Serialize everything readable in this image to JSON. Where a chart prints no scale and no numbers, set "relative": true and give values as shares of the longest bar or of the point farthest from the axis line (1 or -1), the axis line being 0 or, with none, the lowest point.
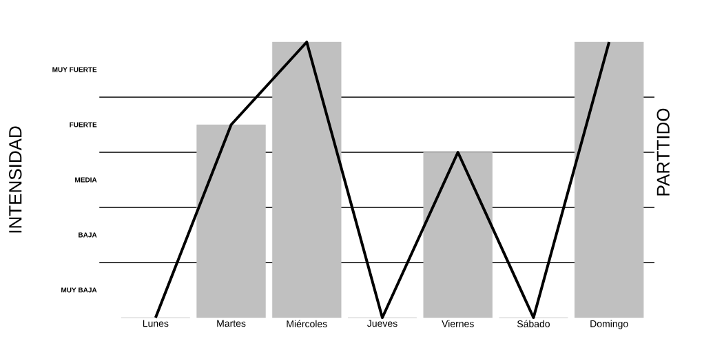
{
  "chart_data": {
    "type": "bar",
    "ylabel": "INTENSIDAD",
    "y2label": "PARTTIDO",
    "relative": true,
    "categories": [
      "Lunes",
      "Martes",
      "Miércoles",
      "Jueves",
      "Viernes",
      "Sábado",
      "Domingo"
    ],
    "series": [
      {
        "color": "#c0c0c0",
        "values": [
          0,
          0.7,
          1,
          0,
          0.6,
          0,
          1
        ]
      },
      {
        "type": "line",
        "color": "#000000",
        "values": [
          0,
          0.7,
          1,
          0,
          0.6,
          0,
          1
        ]
      }
    ],
    "annotations": [
      "MUY FUERTE",
      "FUERTE",
      "MEDIA",
      "BAJA",
      "MUY BAJA"
    ],
    "grid": "y",
    "marker": "none",
    "line_style": "solid"
  }
}
